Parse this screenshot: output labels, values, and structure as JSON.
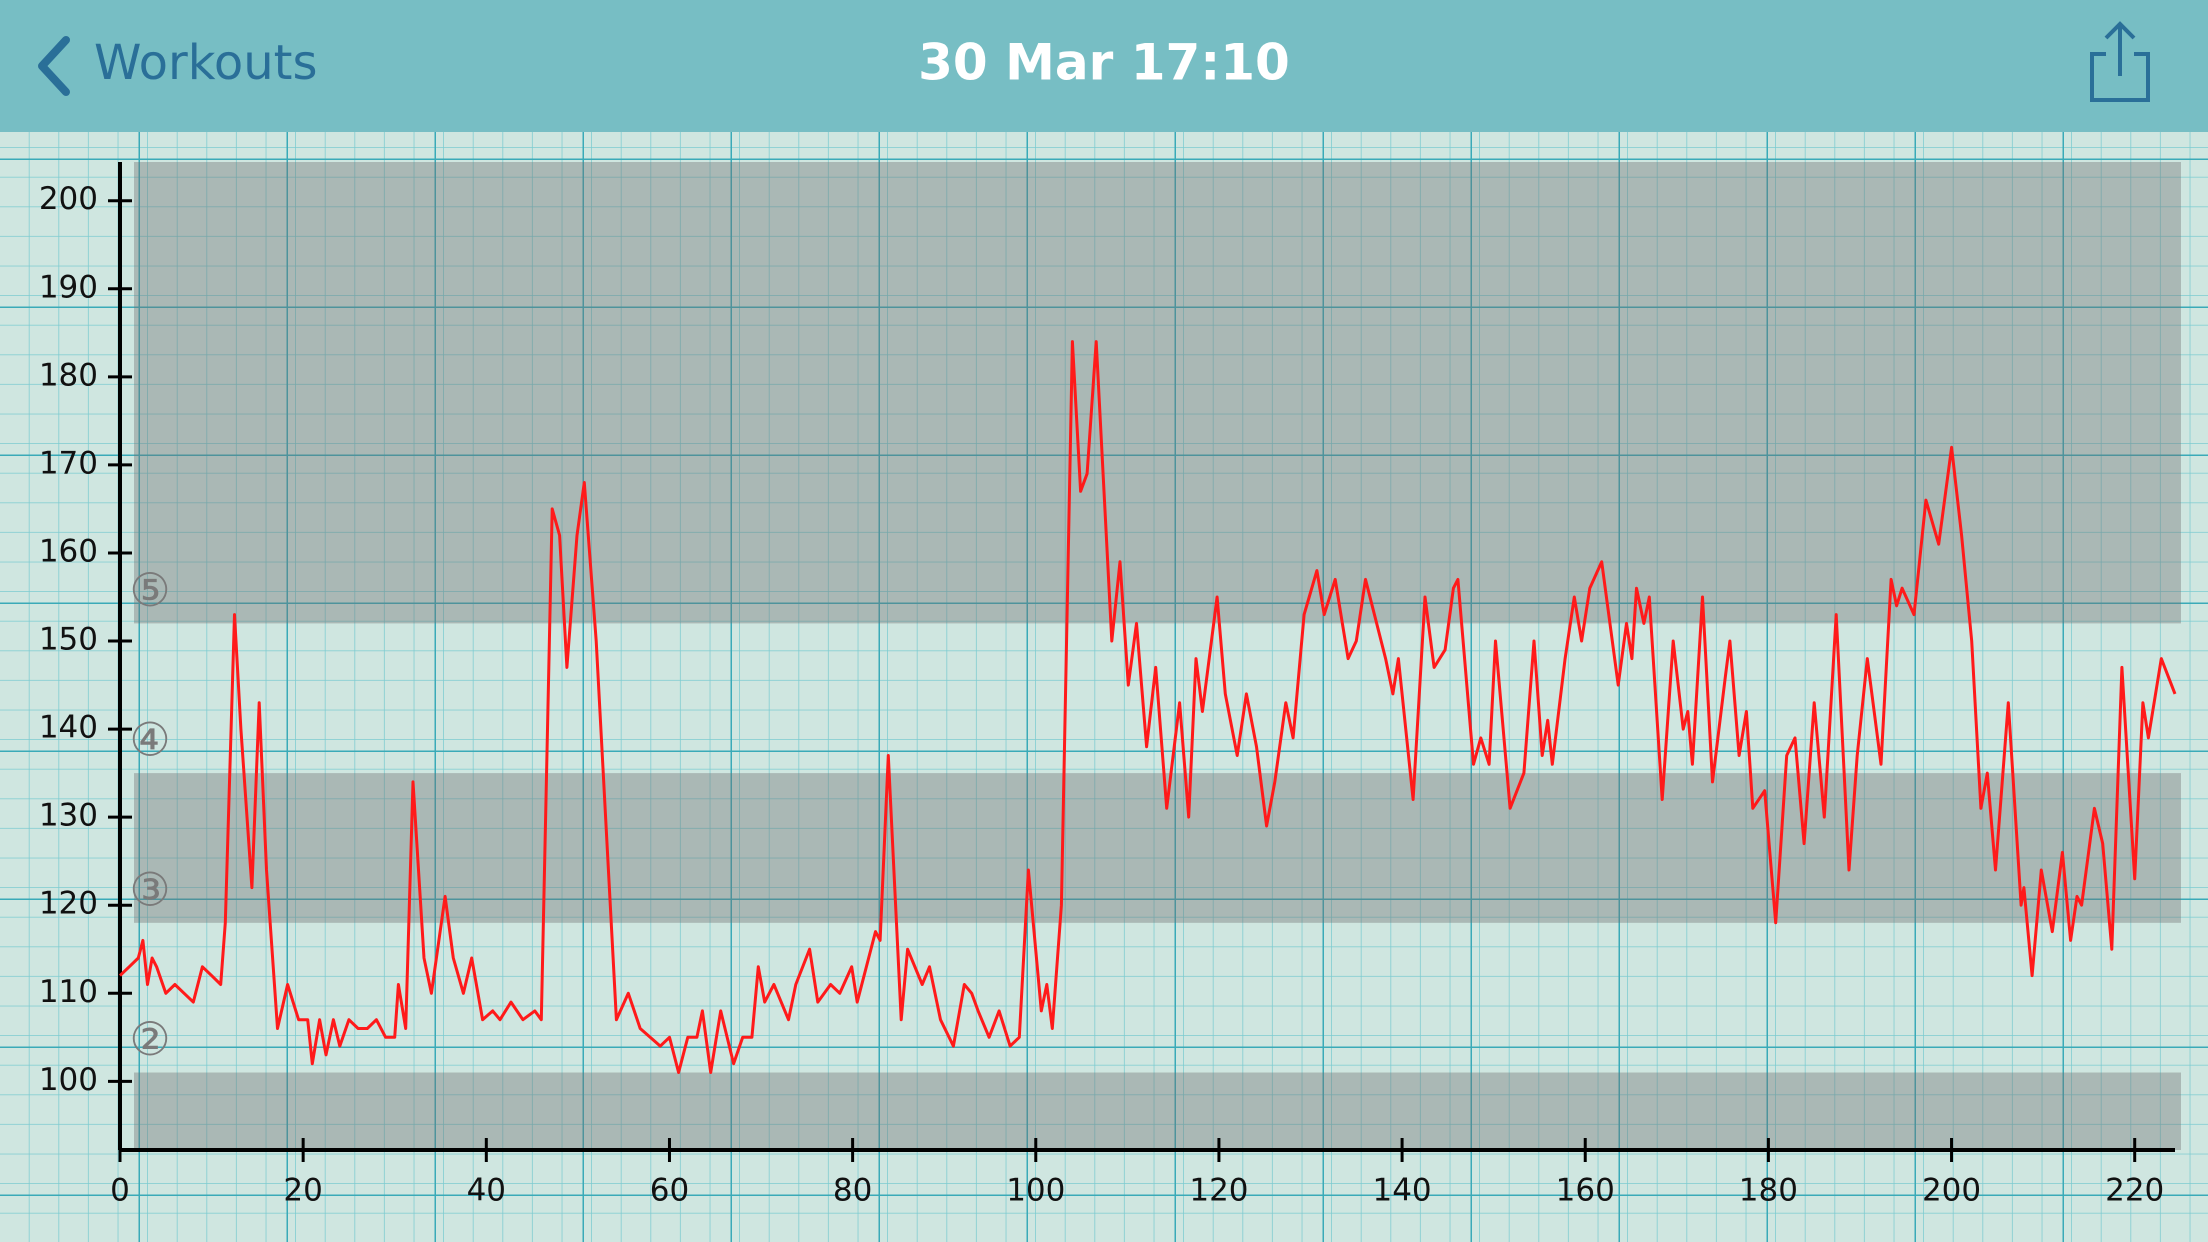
{
  "header": {
    "back": "Workouts",
    "title": "30 Mar 17:10"
  },
  "chart_data": {
    "type": "line",
    "x": [
      0,
      1,
      2,
      2.5,
      3,
      3.5,
      4,
      5,
      6,
      7,
      8,
      9,
      10,
      11,
      11.5,
      12.5,
      13.2,
      14.4,
      15.2,
      16,
      17.2,
      18.3,
      19.5,
      20.5,
      21,
      21.8,
      22.5,
      23.3,
      24,
      25,
      26,
      27,
      28,
      29,
      30,
      30.4,
      31.2,
      32,
      33.2,
      34,
      35.5,
      36.4,
      37.5,
      38.4,
      39.6,
      40.7,
      41.5,
      42.7,
      44,
      45.3,
      46,
      47.2,
      48,
      48.8,
      49.9,
      50.7,
      52,
      54.2,
      55.5,
      56.8,
      59,
      60,
      61,
      62,
      63,
      63.6,
      64.5,
      65.6,
      67,
      68,
      69,
      69.7,
      70.4,
      71.4,
      73,
      73.8,
      75.3,
      76.2,
      77.6,
      78.6,
      79.9,
      80.5,
      82.5,
      83,
      83.9,
      85.3,
      86,
      87.6,
      88.4,
      89.6,
      91,
      92.2,
      93,
      93.7,
      94.9,
      96,
      97.2,
      98.2,
      99.2,
      100.6,
      101.2,
      101.8,
      102.8,
      104,
      104.9,
      105.6,
      106.6,
      108.3,
      109.2,
      110.1,
      111,
      112.1,
      113.1,
      114.3,
      115.7,
      116.7,
      117.5,
      118.2,
      119.8,
      120.7,
      122,
      123,
      124.1,
      125.2,
      126.1,
      127.3,
      128.1,
      129.3,
      130.7,
      131.5,
      132.7,
      134.1,
      135,
      136,
      138.2,
      139,
      139.6,
      141.2,
      142.5,
      143.5,
      144.7,
      145.6,
      146.1,
      147.8,
      148.6,
      149.5,
      150.2,
      151.8,
      153.3,
      154.4,
      155.3,
      155.9,
      156.4,
      157.8,
      158.8,
      159.6,
      160.5,
      161.8,
      163.6,
      164.5,
      165.1,
      165.6,
      166.4,
      167,
      168.4,
      169.6,
      170.7,
      171.2,
      171.7,
      172.8,
      173.9,
      175.3,
      175.8,
      176.8,
      177.6,
      178.3,
      179.6,
      180.8,
      182,
      182.9,
      183.9,
      185,
      186.1,
      187.4,
      188.8,
      189.7,
      190.8,
      192.3,
      193.4,
      194,
      194.6,
      195.9,
      197.2,
      198.6,
      200,
      201.1,
      202.2,
      203.2,
      203.9,
      204.8,
      206.2,
      207.6,
      207.9,
      208.8,
      209.8,
      211,
      212.1,
      213,
      213.7,
      214.2,
      215.6,
      216.5,
      217.5,
      218.6,
      220,
      220.9,
      221.5,
      222.9,
      224.4
    ],
    "values": [
      112,
      113,
      114,
      116,
      111,
      114,
      113,
      110,
      111,
      110,
      109,
      113,
      112,
      111,
      118,
      153,
      140,
      122,
      143,
      124,
      106,
      111,
      107,
      107,
      102,
      107,
      103,
      107,
      104,
      107,
      106,
      106,
      107,
      105,
      105,
      111,
      106,
      134,
      114,
      110,
      121,
      114,
      110,
      114,
      107,
      108,
      107,
      109,
      107,
      108,
      107,
      165,
      162,
      147,
      162,
      168,
      150,
      107,
      110,
      106,
      104,
      105,
      101,
      105,
      105,
      108,
      101,
      108,
      102,
      105,
      105,
      113,
      109,
      111,
      107,
      111,
      115,
      109,
      111,
      110,
      113,
      109,
      117,
      116,
      137,
      107,
      115,
      111,
      113,
      107,
      104,
      111,
      110,
      108,
      105,
      108,
      104,
      105,
      124,
      108,
      111,
      106,
      120,
      184,
      167,
      169,
      184,
      150,
      159,
      145,
      152,
      138,
      147,
      131,
      143,
      130,
      148,
      142,
      155,
      144,
      137,
      144,
      138,
      129,
      134,
      143,
      139,
      153,
      158,
      153,
      157,
      148,
      150,
      157,
      148,
      144,
      148,
      132,
      155,
      147,
      149,
      156,
      157,
      136,
      139,
      136,
      150,
      131,
      135,
      150,
      137,
      141,
      136,
      148,
      155,
      150,
      156,
      159,
      145,
      152,
      148,
      156,
      152,
      155,
      132,
      150,
      140,
      142,
      136,
      155,
      134,
      146,
      150,
      137,
      142,
      131,
      133,
      118,
      137,
      139,
      127,
      143,
      130,
      153,
      124,
      137,
      148,
      136,
      157,
      154,
      156,
      153,
      166,
      161,
      172,
      162,
      150,
      131,
      135,
      124,
      143,
      120,
      122,
      112,
      124,
      117,
      126,
      116,
      121,
      120,
      131,
      127,
      115,
      147,
      123,
      143,
      139,
      148,
      144
    ],
    "xlim": [
      0,
      224.4
    ],
    "ylim": [
      92.2,
      204.4
    ],
    "xticks": [
      0,
      20,
      40,
      60,
      80,
      100,
      120,
      140,
      160,
      180,
      200,
      220
    ],
    "yticks": [
      100,
      110,
      120,
      130,
      140,
      150,
      160,
      170,
      180,
      190,
      200
    ],
    "color": "#ff1a1a",
    "zones": [
      {
        "label": "②",
        "from": 101,
        "to": 118,
        "shaded": false
      },
      {
        "label": "③",
        "from": 118,
        "to": 135,
        "shaded": true
      },
      {
        "label": "④",
        "from": 135,
        "to": 152,
        "shaded": false
      },
      {
        "label": "⑤",
        "from": 152,
        "to": 204.4,
        "shaded": true
      }
    ]
  }
}
